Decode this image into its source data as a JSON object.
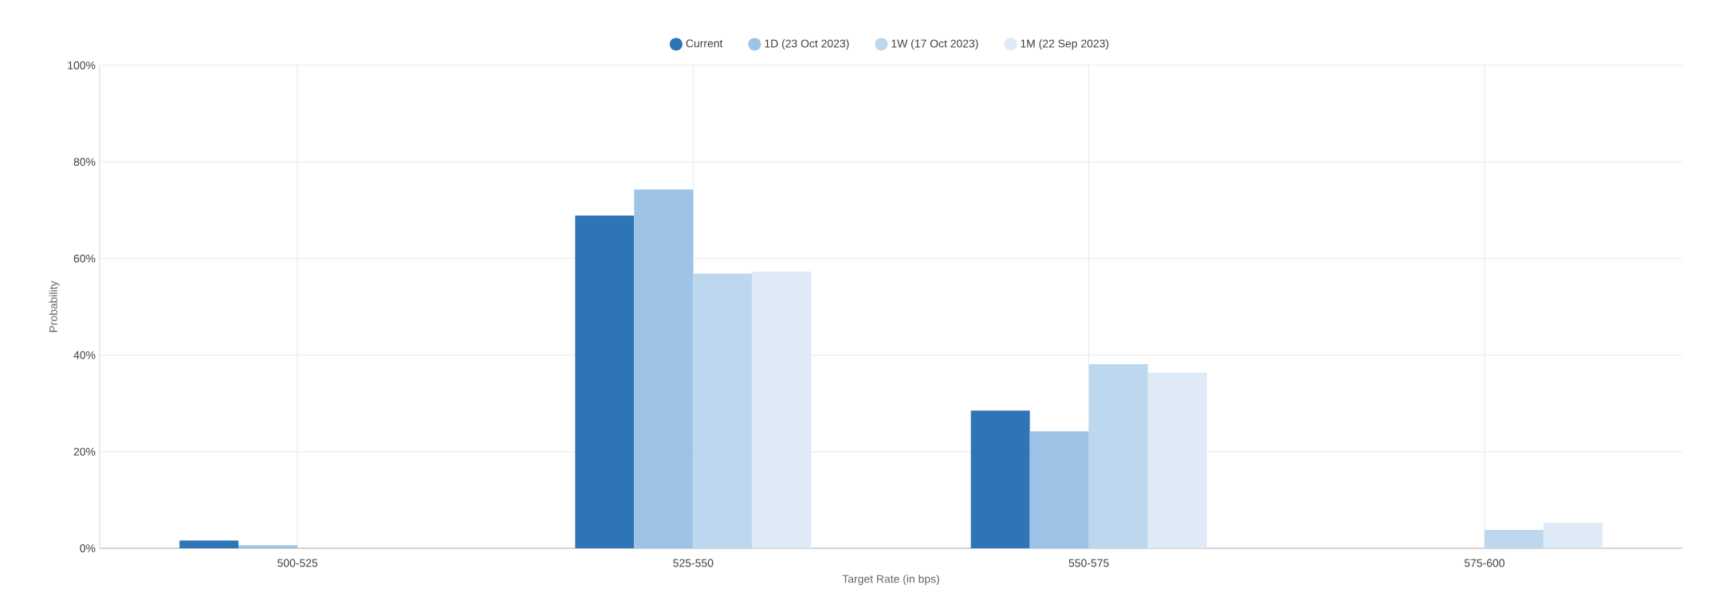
{
  "chart_data": {
    "type": "bar",
    "categories": [
      "500-525",
      "525-550",
      "550-575",
      "575-600"
    ],
    "series": [
      {
        "name": "Current",
        "color": "#2e75b6",
        "values": [
          1.6,
          68.9,
          28.5,
          0
        ]
      },
      {
        "name": "1D (23 Oct 2023)",
        "color": "#9dc3e6",
        "values": [
          0.6,
          74.3,
          24.2,
          0
        ]
      },
      {
        "name": "1W (17 Oct 2023)",
        "color": "#bdd7ee",
        "values": [
          0,
          56.9,
          38.1,
          3.8
        ]
      },
      {
        "name": "1M (22 Sep 2023)",
        "color": "#deebf7",
        "values": [
          0,
          57.3,
          36.4,
          5.3
        ]
      }
    ],
    "xlabel": "Target Rate (in bps)",
    "ylabel": "Probability",
    "ylim": [
      0,
      100
    ],
    "yticks": [
      {
        "value": 0,
        "label": "0%"
      },
      {
        "value": 20,
        "label": "20%"
      },
      {
        "value": 40,
        "label": "40%"
      },
      {
        "value": 60,
        "label": "60%"
      },
      {
        "value": 80,
        "label": "80%"
      },
      {
        "value": 100,
        "label": "100%"
      }
    ],
    "grid": true,
    "legend": "top"
  }
}
